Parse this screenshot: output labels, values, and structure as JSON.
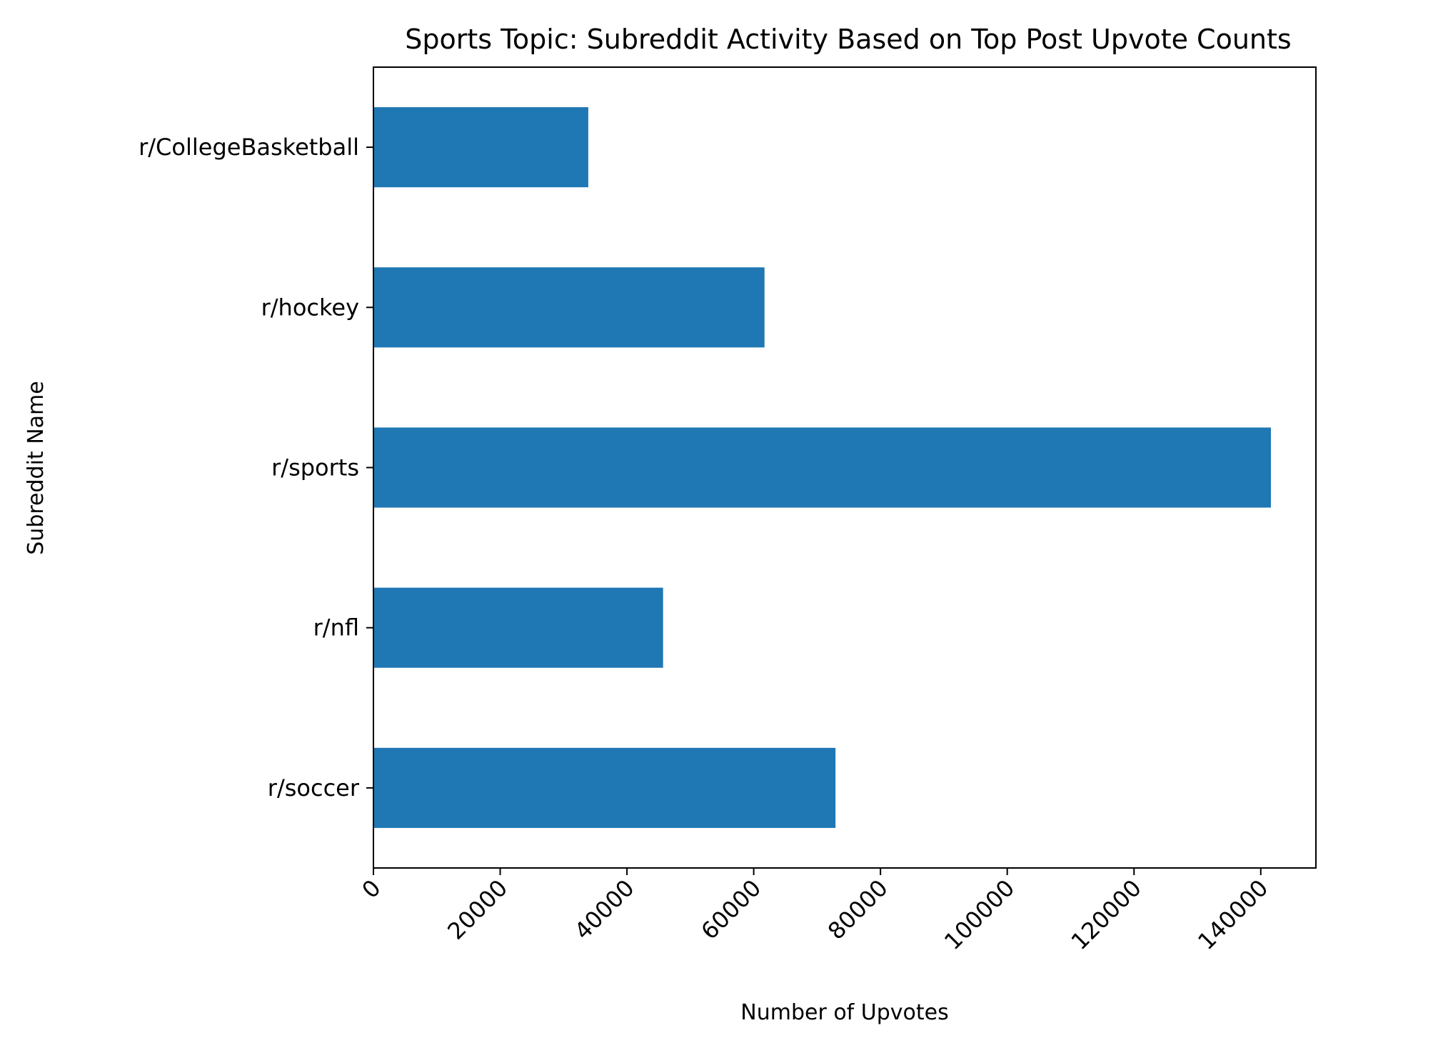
{
  "chart_data": {
    "type": "bar",
    "orientation": "horizontal",
    "title": "Sports Topic: Subreddit Activity Based on Top Post Upvote Counts",
    "xlabel": "Number of Upvotes",
    "ylabel": "Subreddit Name",
    "categories": [
      "r/CollegeBasketball",
      "r/hockey",
      "r/sports",
      "r/nfl",
      "r/soccer"
    ],
    "values": [
      33900,
      61700,
      141600,
      45700,
      72900
    ],
    "xlim": [
      0,
      148700
    ],
    "xticks": [
      0,
      20000,
      40000,
      60000,
      80000,
      100000,
      120000,
      140000
    ],
    "xtick_labels": [
      "0",
      "20000",
      "40000",
      "60000",
      "80000",
      "100000",
      "120000",
      "140000"
    ],
    "bar_color": "#1f77b4",
    "grid": false,
    "legend": "none"
  }
}
